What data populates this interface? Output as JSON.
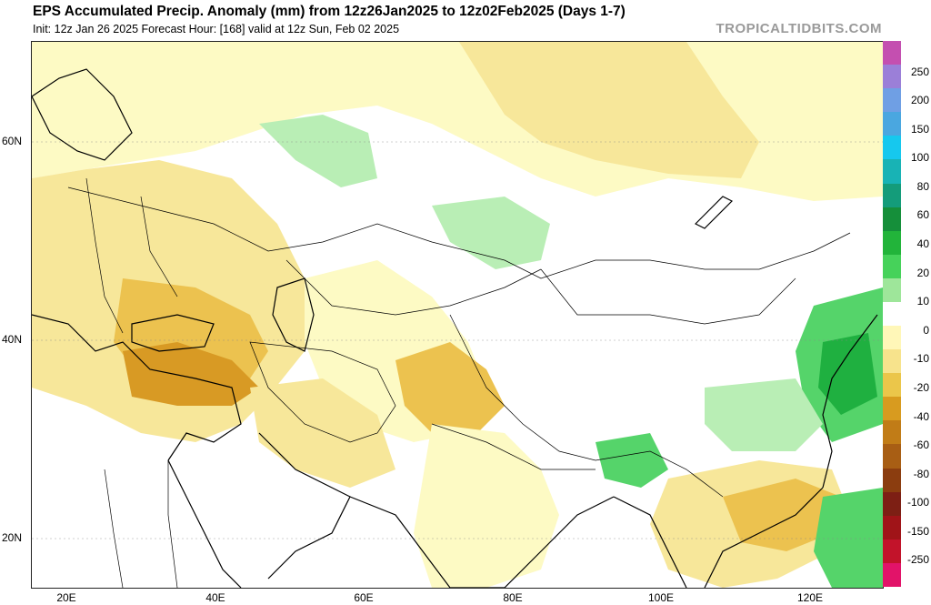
{
  "header": {
    "title": "EPS Accumulated Precip. Anomaly (mm) from 12z26Jan2025 to 12z02Feb2025 (Days 1-7)",
    "subtitle": "Init: 12z Jan 26 2025    Forecast Hour: [168]    valid at 12z Sun, Feb 02 2025",
    "brand": "TROPICALTIDBITS.COM"
  },
  "axes": {
    "lat_labels": [
      "60N",
      "40N",
      "20N"
    ],
    "lon_labels": [
      "20E",
      "40E",
      "60E",
      "80E",
      "100E",
      "120E"
    ]
  },
  "colorbar": {
    "labels": [
      "250",
      "200",
      "150",
      "100",
      "80",
      "60",
      "40",
      "20",
      "10",
      "0",
      "-10",
      "-20",
      "-40",
      "-60",
      "-80",
      "-100",
      "-150",
      "-250"
    ],
    "colors": [
      "#c44fb0",
      "#9b7fd8",
      "#6f9fe4",
      "#4aa7e0",
      "#16c8ee",
      "#18b3b5",
      "#149c7a",
      "#158f3a",
      "#22b43a",
      "#46d25a",
      "#9ee69a",
      "#ffffff",
      "#fff7b8",
      "#f7e38c",
      "#ebc64a",
      "#d89b1f",
      "#c17c17",
      "#a85e14",
      "#8b3d0f",
      "#7d1f14",
      "#a01418",
      "#c2132a",
      "#e21369"
    ]
  },
  "map": {
    "anomaly_colors": {
      "dry_light": "#fdfac4",
      "dry_mid": "#f7e79a",
      "dry_strong": "#ecc24f",
      "dry_heavy": "#d89a24",
      "wet_light": "#b9eeb5",
      "wet_mid": "#55d46a",
      "wet_strong": "#1fb040"
    }
  }
}
